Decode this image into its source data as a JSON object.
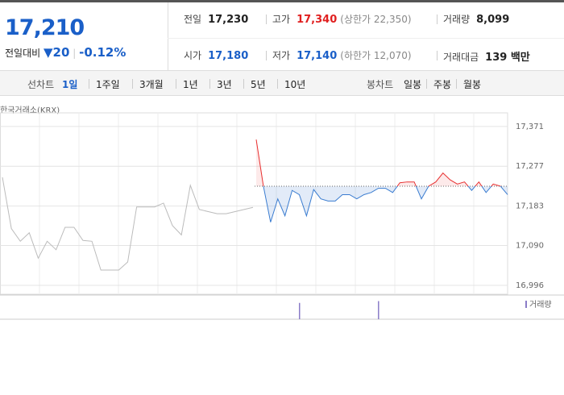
{
  "header": {
    "price": "17,210",
    "change_label": "전일대비",
    "change": "20",
    "change_rate": "-0.12%",
    "stats": [
      {
        "label": "전일",
        "value": "17,230",
        "color": "#222"
      },
      {
        "label": "고가",
        "value": "17,340",
        "color": "#e02020",
        "note": "(상한가 22,350)"
      },
      {
        "label": "거래량",
        "value": "8,099",
        "color": "#222"
      },
      {
        "label": "시가",
        "value": "17,180",
        "color": "#1a5fc8"
      },
      {
        "label": "저가",
        "value": "17,140",
        "color": "#1a5fc8",
        "note": "(하한가 12,070)"
      },
      {
        "label": "거래대금",
        "value": "139 백만",
        "color": "#222"
      }
    ]
  },
  "tabs": {
    "line_label": "선차트",
    "line_periods": [
      "1일",
      "1주일",
      "3개월",
      "1년",
      "3년",
      "5년",
      "10년"
    ],
    "active": 0,
    "candle_label": "봉차트",
    "candle_periods": [
      "일봉",
      "주봉",
      "월봉"
    ]
  },
  "chart_data": {
    "type": "line",
    "source": "한국거래소(KRX)",
    "reference": 17230,
    "ylim": [
      16975,
      17403
    ],
    "yticks": [
      {
        "value": 17371,
        "label": "17,371"
      },
      {
        "value": 17277,
        "label": "17,277"
      },
      {
        "value": 17183,
        "label": "17,183"
      },
      {
        "value": 17090,
        "label": "17,090"
      },
      {
        "value": 16996,
        "label": "16,996"
      }
    ],
    "grid": true,
    "previous": {
      "color": "#bbbbbb",
      "values": [
        17251,
        17130,
        17100,
        17120,
        17060,
        17100,
        17080,
        17133,
        17133,
        17102,
        17100,
        17032,
        17032,
        17032,
        17051,
        17181,
        17181,
        17181,
        17190,
        17137,
        17115,
        17232,
        17175,
        17170,
        17165,
        17165,
        17170,
        17175,
        17180
      ]
    },
    "series": [
      {
        "up_color": "#e83030",
        "down_color": "#3a7cd0",
        "values": [
          17340,
          17230,
          17145,
          17200,
          17160,
          17220,
          17210,
          17160,
          17222,
          17200,
          17195,
          17195,
          17210,
          17210,
          17200,
          17210,
          17215,
          17225,
          17225,
          17215,
          17238,
          17240,
          17240,
          17200,
          17230,
          17240,
          17261,
          17245,
          17235,
          17240,
          17220,
          17240,
          17215,
          17235,
          17230,
          17210
        ]
      }
    ],
    "volume": {
      "label": "거래량",
      "color": "#8a7cc8",
      "ylim": [
        0,
        1200
      ],
      "values": [
        null,
        null,
        null,
        null,
        null,
        null,
        900,
        null,
        null,
        null,
        null,
        null,
        null,
        null,
        null,
        null,
        null,
        1000,
        null,
        null,
        null,
        null,
        null,
        null,
        null,
        null,
        null,
        null,
        null,
        null,
        null,
        null,
        null,
        null,
        null,
        null
      ]
    }
  }
}
